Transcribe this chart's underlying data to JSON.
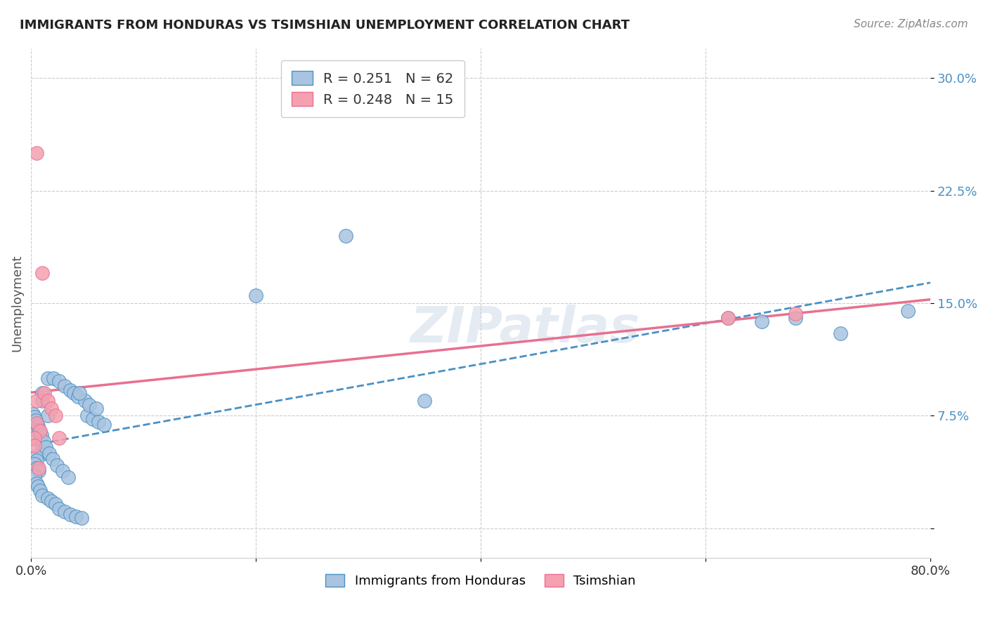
{
  "title": "IMMIGRANTS FROM HONDURAS VS TSIMSHIAN UNEMPLOYMENT CORRELATION CHART",
  "source": "Source: ZipAtlas.com",
  "xlabel": "",
  "ylabel": "Unemployment",
  "xlim": [
    0.0,
    0.8
  ],
  "ylim": [
    -0.02,
    0.32
  ],
  "yticks": [
    0.0,
    0.075,
    0.15,
    0.225,
    0.3
  ],
  "ytick_labels": [
    "",
    "7.5%",
    "15.0%",
    "22.5%",
    "30.0%"
  ],
  "xticks": [
    0.0,
    0.2,
    0.4,
    0.6,
    0.8
  ],
  "xtick_labels": [
    "0.0%",
    "",
    "",
    "",
    "80.0%"
  ],
  "watermark": "ZIPatlas",
  "legend_r_blue": "0.251",
  "legend_n_blue": "62",
  "legend_r_pink": "0.248",
  "legend_n_pink": "15",
  "blue_color": "#a8c4e0",
  "pink_color": "#f4a0b0",
  "line_blue_color": "#4a90c4",
  "line_pink_color": "#e87090",
  "blue_x": [
    0.01,
    0.01,
    0.015,
    0.005,
    0.005,
    0.008,
    0.01,
    0.012,
    0.005,
    0.005,
    0.003,
    0.005,
    0.007,
    0.003,
    0.005,
    0.006,
    0.008,
    0.01,
    0.015,
    0.018,
    0.022,
    0.025,
    0.03,
    0.035,
    0.04,
    0.045,
    0.05,
    0.055,
    0.06,
    0.065,
    0.015,
    0.02,
    0.025,
    0.03,
    0.035,
    0.038,
    0.042,
    0.048,
    0.052,
    0.058,
    0.002,
    0.003,
    0.004,
    0.006,
    0.007,
    0.009,
    0.011,
    0.013,
    0.016,
    0.019,
    0.023,
    0.028,
    0.033,
    0.043,
    0.28,
    0.2,
    0.35,
    0.62,
    0.65,
    0.68,
    0.72,
    0.78
  ],
  "blue_y": [
    0.09,
    0.085,
    0.075,
    0.07,
    0.065,
    0.06,
    0.055,
    0.05,
    0.048,
    0.045,
    0.043,
    0.04,
    0.038,
    0.035,
    0.03,
    0.028,
    0.025,
    0.022,
    0.02,
    0.018,
    0.016,
    0.013,
    0.011,
    0.009,
    0.008,
    0.007,
    0.075,
    0.073,
    0.071,
    0.069,
    0.1,
    0.1,
    0.098,
    0.095,
    0.092,
    0.09,
    0.088,
    0.085,
    0.082,
    0.08,
    0.076,
    0.074,
    0.072,
    0.068,
    0.066,
    0.062,
    0.058,
    0.054,
    0.05,
    0.046,
    0.042,
    0.038,
    0.034,
    0.09,
    0.195,
    0.155,
    0.085,
    0.14,
    0.138,
    0.14,
    0.13,
    0.145
  ],
  "pink_x": [
    0.005,
    0.005,
    0.01,
    0.012,
    0.015,
    0.018,
    0.022,
    0.005,
    0.008,
    0.003,
    0.62,
    0.68,
    0.003,
    0.007,
    0.025
  ],
  "pink_y": [
    0.25,
    0.085,
    0.17,
    0.09,
    0.085,
    0.08,
    0.075,
    0.07,
    0.065,
    0.06,
    0.14,
    0.143,
    0.055,
    0.04,
    0.06
  ]
}
